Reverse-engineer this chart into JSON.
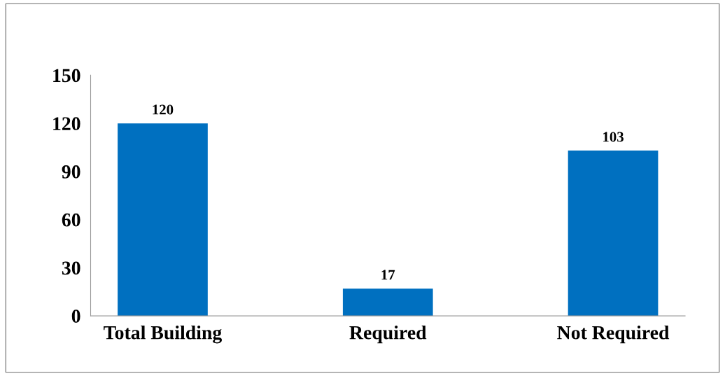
{
  "chart_data": {
    "type": "bar",
    "categories": [
      "Total Building",
      "Required",
      "Not Required"
    ],
    "values": [
      120,
      17,
      103
    ],
    "color": "#0070c0",
    "ylim": [
      0,
      150
    ],
    "yticks": [
      0,
      30,
      60,
      90,
      120,
      150
    ],
    "grid": false,
    "data_labels": true
  }
}
